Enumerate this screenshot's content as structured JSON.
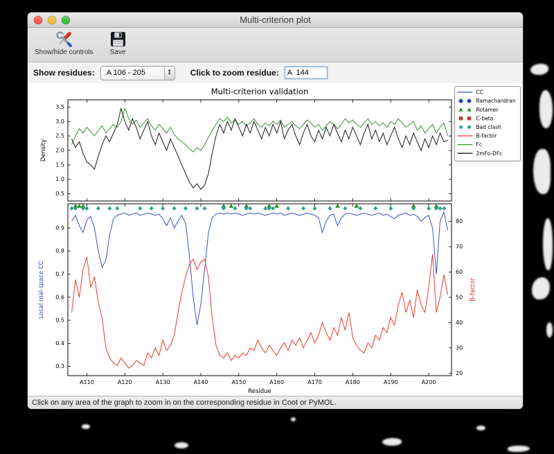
{
  "window": {
    "title": "Multi-criterion plot",
    "toolbar": {
      "show_hide_label": "Show/hide controls",
      "save_label": "Save"
    },
    "controls": {
      "show_residues_label": "Show residues:",
      "residue_range_value": "A 106 - 205",
      "zoom_residue_label": "Click to zoom residue:",
      "zoom_residue_value": "A  144"
    },
    "status_text": "Click on any area of the graph to zoom in on the corresponding residue in Coot or PyMOL."
  },
  "chart_data": {
    "type": "line",
    "title": "Multi-criterion validation",
    "xlabel": "Residue",
    "x_start": 106,
    "x_end": 205,
    "xlim": [
      105,
      206
    ],
    "x_tick_values": [
      110,
      120,
      130,
      140,
      150,
      160,
      170,
      180,
      190,
      200
    ],
    "x_tick_labels": [
      "A110",
      "A120",
      "A130",
      "A140",
      "A150",
      "A160",
      "A170",
      "A180",
      "A190",
      "A200"
    ],
    "top_plot": {
      "ylabel": "Density",
      "ylim": [
        0.25,
        3.75
      ],
      "yticks": [
        0.5,
        1.0,
        1.5,
        2.0,
        2.5,
        3.0,
        3.5
      ],
      "series": [
        {
          "name": "Fc",
          "color": "#3c8c3c",
          "values": [
            2.2,
            2.5,
            2.75,
            2.6,
            2.8,
            2.65,
            2.5,
            2.7,
            2.85,
            2.6,
            2.75,
            2.9,
            2.8,
            3.0,
            3.45,
            3.1,
            2.9,
            3.05,
            2.8,
            2.95,
            3.1,
            2.85,
            2.7,
            2.9,
            2.75,
            2.6,
            2.8,
            2.55,
            2.4,
            2.3,
            2.2,
            2.05,
            1.95,
            2.1,
            2.0,
            2.2,
            2.45,
            2.7,
            2.9,
            3.1,
            3.0,
            3.15,
            2.95,
            3.05,
            2.9,
            3.0,
            2.85,
            2.95,
            3.1,
            2.9,
            2.8,
            2.95,
            2.85,
            3.0,
            2.9,
            3.05,
            2.8,
            2.9,
            3.0,
            2.85,
            2.75,
            2.9,
            3.05,
            2.95,
            2.8,
            2.9,
            2.7,
            2.85,
            3.0,
            2.9,
            2.75,
            2.9,
            3.1,
            2.95,
            3.05,
            2.9,
            2.8,
            2.95,
            3.1,
            2.9,
            3.0,
            2.85,
            2.95,
            2.8,
            3.0,
            2.9,
            3.1,
            2.95,
            2.8,
            2.9,
            3.0,
            2.7,
            2.85,
            2.6,
            2.75,
            2.9,
            2.6,
            2.8,
            2.95,
            2.5
          ]
        },
        {
          "name": "2mFo-DFc",
          "color": "#1a1a1a",
          "values": [
            2.4,
            2.1,
            2.3,
            1.9,
            1.6,
            1.5,
            1.35,
            1.8,
            2.2,
            2.5,
            2.3,
            2.6,
            2.9,
            3.45,
            3.0,
            2.7,
            3.1,
            2.8,
            2.4,
            2.7,
            3.0,
            2.5,
            2.2,
            2.6,
            2.3,
            2.0,
            2.4,
            2.1,
            1.8,
            1.5,
            1.2,
            0.9,
            0.7,
            0.85,
            0.65,
            0.8,
            1.2,
            1.9,
            2.5,
            2.9,
            2.6,
            3.0,
            2.7,
            3.1,
            2.8,
            2.5,
            2.9,
            2.6,
            3.0,
            2.7,
            2.4,
            2.8,
            2.5,
            2.9,
            2.6,
            3.0,
            2.4,
            2.7,
            2.9,
            2.5,
            2.2,
            2.6,
            2.9,
            2.5,
            2.3,
            2.7,
            2.4,
            2.8,
            2.5,
            2.9,
            2.6,
            2.3,
            2.7,
            2.4,
            2.8,
            2.5,
            2.2,
            2.6,
            2.9,
            2.4,
            2.7,
            2.3,
            2.6,
            2.2,
            2.5,
            2.8,
            2.4,
            2.1,
            2.5,
            2.2,
            2.6,
            2.3,
            2.0,
            2.4,
            2.1,
            2.5,
            2.2,
            2.6,
            2.3,
            2.35
          ]
        }
      ]
    },
    "bottom_plot": {
      "ylabel_left": "Local real-space CC",
      "ylabel_left_color": "#2d43c8",
      "ylabel_right": "B-factor",
      "ylabel_right_color": "#d93020",
      "ylim_left": [
        0.26,
        1.005
      ],
      "yticks_left": [
        0.3,
        0.4,
        0.5,
        0.6,
        0.7,
        0.8,
        0.9
      ],
      "ylim_right": [
        19,
        87
      ],
      "yticks_right": [
        20,
        30,
        40,
        50,
        60,
        70,
        80
      ],
      "series": [
        {
          "name": "CC",
          "axis": "left",
          "color": "#3a52c8",
          "values": [
            0.93,
            0.955,
            0.91,
            0.88,
            0.935,
            0.95,
            0.9,
            0.8,
            0.73,
            0.76,
            0.87,
            0.94,
            0.955,
            0.96,
            0.965,
            0.955,
            0.96,
            0.965,
            0.955,
            0.96,
            0.965,
            0.96,
            0.955,
            0.96,
            0.94,
            0.91,
            0.945,
            0.9,
            0.93,
            0.955,
            0.92,
            0.78,
            0.6,
            0.48,
            0.57,
            0.72,
            0.88,
            0.945,
            0.96,
            0.965,
            0.96,
            0.965,
            0.96,
            0.965,
            0.96,
            0.955,
            0.96,
            0.965,
            0.96,
            0.965,
            0.96,
            0.955,
            0.96,
            0.965,
            0.96,
            0.965,
            0.955,
            0.96,
            0.965,
            0.96,
            0.955,
            0.96,
            0.965,
            0.96,
            0.955,
            0.945,
            0.88,
            0.93,
            0.955,
            0.96,
            0.91,
            0.945,
            0.96,
            0.965,
            0.96,
            0.955,
            0.96,
            0.965,
            0.96,
            0.955,
            0.96,
            0.965,
            0.955,
            0.96,
            0.95,
            0.94,
            0.955,
            0.96,
            0.965,
            0.955,
            0.96,
            0.95,
            0.93,
            0.945,
            0.955,
            0.9,
            0.7,
            0.93,
            0.97,
            0.89
          ]
        },
        {
          "name": "B-factor",
          "axis": "right",
          "color": "#e8392a",
          "values": [
            44,
            57,
            50,
            61,
            66,
            54,
            58,
            48,
            42,
            30,
            26,
            24,
            23,
            26,
            24,
            22,
            23,
            25,
            24,
            23,
            28,
            26,
            30,
            27,
            33,
            29,
            31,
            35,
            44,
            52,
            58,
            63,
            65,
            61,
            64,
            65,
            58,
            42,
            31,
            27,
            26,
            28,
            25,
            27,
            26,
            28,
            27,
            30,
            29,
            33,
            30,
            28,
            31,
            29,
            27,
            30,
            32,
            29,
            33,
            31,
            34,
            30,
            33,
            36,
            32,
            35,
            40,
            36,
            33,
            38,
            35,
            42,
            37,
            44,
            34,
            31,
            29,
            28,
            32,
            30,
            35,
            33,
            38,
            36,
            42,
            39,
            47,
            52,
            44,
            49,
            42,
            53,
            47,
            44,
            54,
            67,
            44,
            50,
            59,
            51
          ]
        }
      ],
      "markers": {
        "rotamer": {
          "color": "#2e8b34",
          "y": 1.0,
          "residues": [
            107,
            108,
            109,
            146,
            148,
            152,
            158,
            160,
            176,
            181,
            196,
            202
          ]
        },
        "bad_clash": {
          "color": "#2fa08e",
          "y": 0.985,
          "residues": [
            106,
            107,
            109,
            110,
            113,
            116,
            118,
            124,
            127,
            130,
            133,
            136,
            139,
            141,
            146,
            149,
            152,
            153,
            157,
            158,
            159,
            163,
            167,
            170,
            174,
            178,
            182,
            186,
            190,
            196,
            200,
            202,
            203,
            204
          ]
        }
      }
    },
    "legend": [
      {
        "label": "CC",
        "marker": "line",
        "color": "#3a52c8"
      },
      {
        "label": "Ramachandran",
        "marker": "dots",
        "color": "#2d43c8"
      },
      {
        "label": "Rotamer",
        "marker": "triangles",
        "color": "#2e8b34"
      },
      {
        "label": "C-beta",
        "marker": "squares",
        "color": "#cc3a2e"
      },
      {
        "label": "Bad clash",
        "marker": "diamonds",
        "color": "#2fa08e"
      },
      {
        "label": "B-factor",
        "marker": "line",
        "color": "#e8392a"
      },
      {
        "label": "Fc",
        "marker": "line",
        "color": "#3c8c3c"
      },
      {
        "label": "2mFo-DFc",
        "marker": "line",
        "color": "#1a1a1a"
      }
    ]
  }
}
